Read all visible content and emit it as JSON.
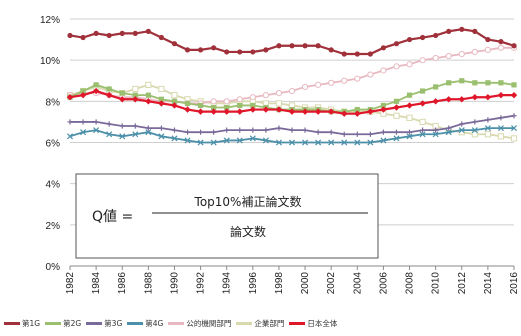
{
  "chart_data": {
    "type": "line",
    "title": "",
    "xlabel": "",
    "ylabel": "",
    "x": [
      1982,
      1983,
      1984,
      1985,
      1986,
      1987,
      1988,
      1989,
      1990,
      1991,
      1992,
      1993,
      1994,
      1995,
      1996,
      1997,
      1998,
      1999,
      2000,
      2001,
      2002,
      2003,
      2004,
      2005,
      2006,
      2007,
      2008,
      2009,
      2010,
      2011,
      2012,
      2013,
      2014,
      2015,
      2016
    ],
    "x_tick_labels": [
      "1982",
      "1984",
      "1986",
      "1988",
      "1990",
      "1992",
      "1994",
      "1996",
      "1998",
      "2000",
      "2002",
      "2004",
      "2006",
      "2008",
      "2010",
      "2012",
      "2014",
      "2016"
    ],
    "ylim": [
      0,
      12
    ],
    "y_tick_labels": [
      "0%",
      "2%",
      "4%",
      "6%",
      "8%",
      "10%",
      "12%"
    ],
    "y_ticks": [
      0,
      2,
      4,
      6,
      8,
      10,
      12
    ],
    "grid": "horizontal",
    "legend_position": "bottom",
    "series": [
      {
        "name": "第1G",
        "color": "#a0303a",
        "marker": "circle",
        "values": [
          11.2,
          11.1,
          11.3,
          11.2,
          11.3,
          11.3,
          11.4,
          11.1,
          10.8,
          10.5,
          10.5,
          10.6,
          10.4,
          10.4,
          10.4,
          10.5,
          10.7,
          10.7,
          10.7,
          10.7,
          10.5,
          10.3,
          10.3,
          10.3,
          10.6,
          10.8,
          11.0,
          11.1,
          11.2,
          11.4,
          11.5,
          11.4,
          11.0,
          10.9,
          10.7
        ]
      },
      {
        "name": "第2G",
        "color": "#9abf6e",
        "marker": "square",
        "values": [
          8.2,
          8.5,
          8.8,
          8.6,
          8.4,
          8.3,
          8.3,
          8.1,
          8.0,
          7.9,
          7.8,
          7.7,
          7.7,
          7.8,
          7.8,
          7.7,
          7.6,
          7.6,
          7.6,
          7.6,
          7.5,
          7.5,
          7.6,
          7.6,
          7.8,
          8.0,
          8.3,
          8.5,
          8.7,
          8.9,
          9.0,
          8.9,
          8.9,
          8.9,
          8.8
        ]
      },
      {
        "name": "第3G",
        "color": "#7a6a9a",
        "marker": "cross",
        "values": [
          7.0,
          7.0,
          7.0,
          6.9,
          6.8,
          6.8,
          6.7,
          6.7,
          6.6,
          6.5,
          6.5,
          6.5,
          6.6,
          6.6,
          6.6,
          6.6,
          6.7,
          6.6,
          6.6,
          6.5,
          6.5,
          6.4,
          6.4,
          6.4,
          6.5,
          6.5,
          6.5,
          6.6,
          6.6,
          6.7,
          6.9,
          7.0,
          7.1,
          7.2,
          7.3
        ]
      },
      {
        "name": "第4G",
        "color": "#4b8fa8",
        "marker": "x",
        "values": [
          6.3,
          6.5,
          6.6,
          6.4,
          6.3,
          6.4,
          6.5,
          6.3,
          6.2,
          6.1,
          6.0,
          6.0,
          6.1,
          6.1,
          6.2,
          6.1,
          6.0,
          6.0,
          6.0,
          6.0,
          6.0,
          6.0,
          6.0,
          6.0,
          6.1,
          6.2,
          6.3,
          6.4,
          6.4,
          6.5,
          6.6,
          6.6,
          6.7,
          6.7,
          6.7
        ]
      },
      {
        "name": "公的機関部門",
        "color": "#e8b8c0",
        "marker": "circle-open",
        "values": [
          8.3,
          8.4,
          8.4,
          8.3,
          8.2,
          8.2,
          8.1,
          8.0,
          8.0,
          7.9,
          7.9,
          8.0,
          8.0,
          8.1,
          8.2,
          8.3,
          8.4,
          8.5,
          8.7,
          8.8,
          8.9,
          9.0,
          9.1,
          9.3,
          9.5,
          9.7,
          9.8,
          10.0,
          10.1,
          10.2,
          10.3,
          10.4,
          10.5,
          10.6,
          10.6
        ]
      },
      {
        "name": "企業部門",
        "color": "#d9d9b0",
        "marker": "square-open",
        "values": [
          8.3,
          8.5,
          8.7,
          8.5,
          8.4,
          8.6,
          8.8,
          8.6,
          8.3,
          8.1,
          8.0,
          7.9,
          7.9,
          8.0,
          8.0,
          7.9,
          7.9,
          7.8,
          7.7,
          7.7,
          7.6,
          7.5,
          7.5,
          7.5,
          7.4,
          7.3,
          7.2,
          7.0,
          6.8,
          6.6,
          6.5,
          6.4,
          6.4,
          6.3,
          6.2
        ]
      },
      {
        "name": "日本全体",
        "color": "#e0162b",
        "marker": "diamond",
        "values": [
          8.2,
          8.3,
          8.5,
          8.3,
          8.1,
          8.1,
          8.0,
          7.9,
          7.8,
          7.6,
          7.5,
          7.5,
          7.5,
          7.5,
          7.6,
          7.6,
          7.6,
          7.5,
          7.5,
          7.5,
          7.5,
          7.4,
          7.4,
          7.5,
          7.6,
          7.7,
          7.8,
          7.9,
          8.0,
          8.1,
          8.1,
          8.2,
          8.2,
          8.3,
          8.3
        ]
      }
    ],
    "annotation": {
      "prefix": "Q値 =",
      "numerator": "Top10%補正論文数",
      "denominator": "論文数"
    }
  }
}
